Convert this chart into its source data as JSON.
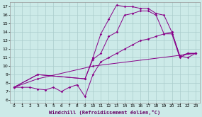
{
  "xlabel": "Windchill (Refroidissement éolien,°C)",
  "bg_color": "#cceae8",
  "line_color": "#880088",
  "grid_color": "#aacccc",
  "xlim": [
    -0.5,
    23.5
  ],
  "ylim": [
    5.7,
    17.5
  ],
  "xticks": [
    0,
    1,
    2,
    3,
    4,
    5,
    6,
    7,
    8,
    9,
    10,
    11,
    12,
    13,
    14,
    15,
    16,
    17,
    18,
    19,
    20,
    21,
    22,
    23
  ],
  "yticks": [
    6,
    7,
    8,
    9,
    10,
    11,
    12,
    13,
    14,
    15,
    16,
    17
  ],
  "line1_x": [
    0,
    1,
    2,
    3,
    4,
    5,
    6,
    7,
    8,
    9,
    10,
    11,
    12,
    13,
    14,
    15,
    16,
    17,
    18,
    19,
    20,
    21,
    22,
    23
  ],
  "line1_y": [
    7.5,
    7.5,
    7.5,
    7.3,
    7.2,
    7.5,
    7.0,
    7.5,
    7.8,
    6.4,
    9.0,
    10.5,
    11.0,
    11.5,
    12.0,
    12.5,
    13.0,
    13.2,
    13.5,
    13.8,
    14.0,
    11.2,
    11.5,
    11.5
  ],
  "line2_x": [
    0,
    3,
    9,
    10,
    11,
    12,
    13,
    14,
    15,
    16,
    17,
    18,
    19,
    20,
    21,
    22,
    23
  ],
  "line2_y": [
    7.5,
    9.0,
    8.5,
    11.0,
    13.8,
    15.5,
    17.2,
    17.0,
    17.0,
    16.8,
    16.8,
    16.2,
    16.0,
    14.0,
    11.2,
    11.0,
    11.5
  ],
  "line3_x": [
    0,
    3,
    9,
    10,
    11,
    12,
    13,
    14,
    15,
    16,
    17,
    18,
    19,
    20,
    21,
    22,
    23
  ],
  "line3_y": [
    7.5,
    9.0,
    8.5,
    10.8,
    11.5,
    13.5,
    14.0,
    16.0,
    16.2,
    16.5,
    16.5,
    16.0,
    13.8,
    13.8,
    11.0,
    11.5,
    11.5
  ],
  "line4_x": [
    0,
    3,
    10,
    23
  ],
  "line4_y": [
    7.5,
    8.5,
    10.0,
    11.5
  ]
}
